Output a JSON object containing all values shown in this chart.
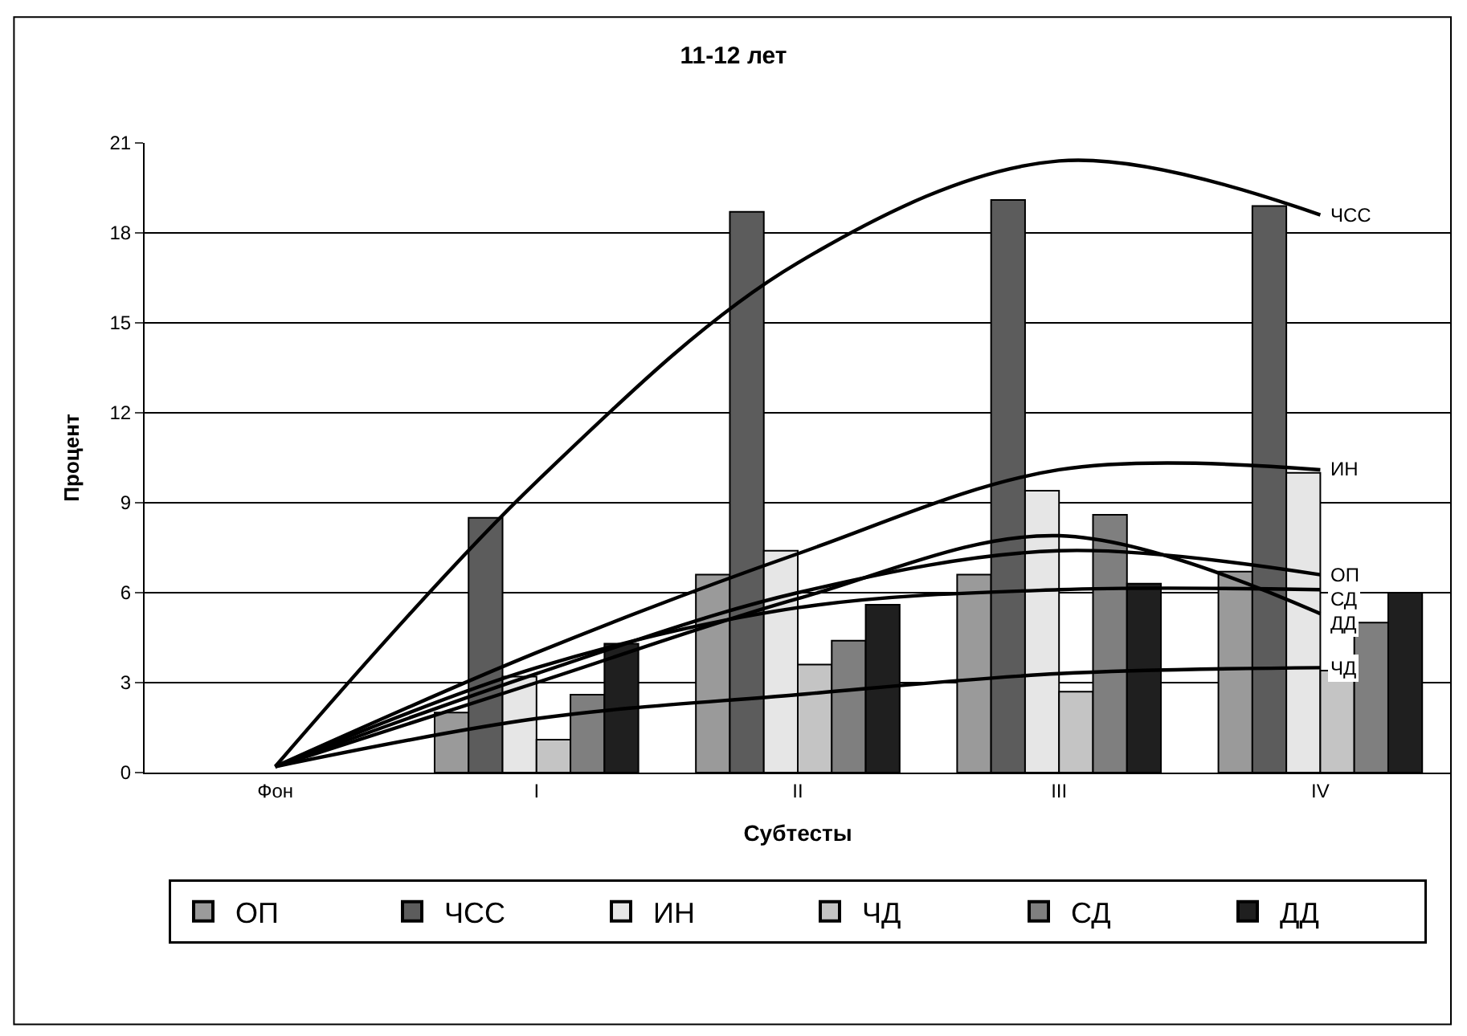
{
  "chart_data": {
    "type": "bar",
    "title": "11-12 лет",
    "xlabel": "Субтесты",
    "ylabel": "Процент",
    "categories": [
      "Фон",
      "I",
      "II",
      "III",
      "IV"
    ],
    "series": [
      {
        "name": "ОП",
        "color": "#9a9a9a",
        "values": [
          null,
          2.0,
          6.6,
          6.6,
          6.7
        ]
      },
      {
        "name": "ЧСС",
        "color": "#5c5c5c",
        "values": [
          null,
          8.5,
          18.7,
          19.1,
          18.9
        ]
      },
      {
        "name": "ИН",
        "color": "#e6e6e6",
        "values": [
          null,
          3.2,
          7.4,
          9.4,
          10.0
        ]
      },
      {
        "name": "ЧД",
        "color": "#c4c4c4",
        "values": [
          null,
          1.1,
          3.6,
          2.7,
          3.4
        ]
      },
      {
        "name": "СД",
        "color": "#7f7f7f",
        "values": [
          null,
          2.6,
          4.4,
          8.6,
          5.0
        ]
      },
      {
        "name": "ДД",
        "color": "#1f1f1f",
        "values": [
          null,
          4.3,
          5.6,
          6.3,
          6.0
        ]
      },
      {
        "type": "line",
        "name": "ЧСС",
        "color": "#000000",
        "values": [
          0.2,
          9.7,
          17.0,
          20.4,
          18.6
        ]
      },
      {
        "type": "line",
        "name": "ИН",
        "color": "#000000",
        "values": [
          0.2,
          4.0,
          7.3,
          10.1,
          10.1
        ]
      },
      {
        "type": "line",
        "name": "СД",
        "color": "#000000",
        "values": [
          0.2,
          3.5,
          5.5,
          6.1,
          6.1
        ]
      },
      {
        "type": "line",
        "name": "ОП",
        "color": "#000000",
        "values": [
          0.2,
          3.3,
          6.0,
          7.4,
          6.6
        ]
      },
      {
        "type": "line",
        "name": "ДД",
        "color": "#000000",
        "values": [
          0.2,
          3.0,
          5.8,
          7.9,
          5.3
        ]
      },
      {
        "type": "line",
        "name": "ЧД",
        "color": "#000000",
        "values": [
          0.2,
          1.8,
          2.6,
          3.3,
          3.5
        ]
      }
    ],
    "ylim": [
      0,
      21
    ],
    "yticks": [
      0,
      3,
      6,
      9,
      12,
      15,
      18,
      21
    ],
    "grid": "y",
    "legend": "bottom"
  }
}
